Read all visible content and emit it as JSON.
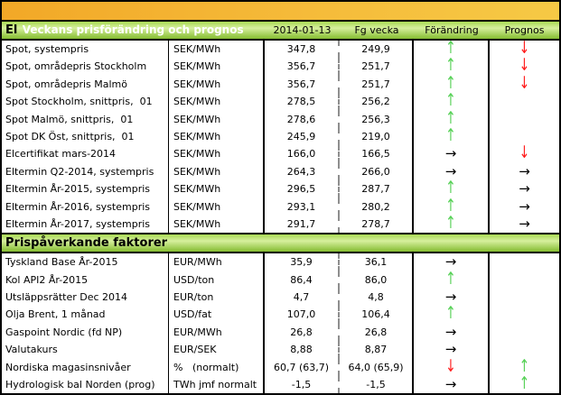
{
  "title": "Veckans prisförändring och prognos",
  "columns": [
    "2014-01-13",
    "Fg vecka",
    "Förändring",
    "Prognos"
  ],
  "column_names": [
    "column-header-date",
    "column-header-prev-week",
    "column-header-change",
    "column-header-forecast"
  ],
  "icons": {
    "up": "↑",
    "down": "↓",
    "flat": "→"
  },
  "colors": {
    "up_arrow": "#58d158",
    "down_arrow": "#ff1e1e",
    "flat_arrow": "#000000",
    "title_bar_orange": "#f2a827",
    "section_bar_green": "#a9da54"
  },
  "sections": [
    {
      "label": "El",
      "show_columns": true,
      "rows": [
        {
          "name": "Spot, systempris",
          "unit": "SEK/MWh",
          "current": "347,8",
          "previous": "249,9",
          "change": "up",
          "forecast": "down"
        },
        {
          "name": "Spot, områdepris Stockholm",
          "unit": "SEK/MWh",
          "current": "356,7",
          "previous": "251,7",
          "change": "up",
          "forecast": "down"
        },
        {
          "name": "Spot, områdepris Malmö",
          "unit": "SEK/MWh",
          "current": "356,7",
          "previous": "251,7",
          "change": "up",
          "forecast": "down"
        },
        {
          "name": "Spot Stockholm, snittpris,  01",
          "unit": "SEK/MWh",
          "current": "278,5",
          "previous": "256,2",
          "change": "up",
          "forecast": null
        },
        {
          "name": "Spot Malmö, snittpris,  01",
          "unit": "SEK/MWh",
          "current": "278,6",
          "previous": "256,3",
          "change": "up",
          "forecast": null
        },
        {
          "name": "Spot DK Öst, snittpris,  01",
          "unit": "SEK/MWh",
          "current": "245,9",
          "previous": "219,0",
          "change": "up",
          "forecast": null
        },
        {
          "name": "Elcertifikat mars-2014",
          "unit": "SEK/MWh",
          "current": "166,0",
          "previous": "166,5",
          "change": "flat",
          "forecast": "down"
        },
        {
          "name": "Eltermin Q2-2014, systempris",
          "unit": "SEK/MWh",
          "current": "264,3",
          "previous": "266,0",
          "change": "flat",
          "forecast": "flat"
        },
        {
          "name": "Eltermin År-2015, systempris",
          "unit": "SEK/MWh",
          "current": "296,5",
          "previous": "287,7",
          "change": "up",
          "forecast": "flat"
        },
        {
          "name": "Eltermin År-2016, systempris",
          "unit": "SEK/MWh",
          "current": "293,1",
          "previous": "280,2",
          "change": "up",
          "forecast": "flat"
        },
        {
          "name": "Eltermin År-2017, systempris",
          "unit": "SEK/MWh",
          "current": "291,7",
          "previous": "278,7",
          "change": "up",
          "forecast": "flat"
        }
      ]
    },
    {
      "label": "Prispåverkande faktorer",
      "show_columns": false,
      "rows": [
        {
          "name": "Tyskland Base År-2015",
          "unit": "EUR/MWh",
          "current": "35,9",
          "previous": "36,1",
          "change": "flat",
          "forecast": null
        },
        {
          "name": "Kol API2 År-2015",
          "unit": "USD/ton",
          "current": "86,4",
          "previous": "86,0",
          "change": "up",
          "forecast": null
        },
        {
          "name": "Utsläppsrätter Dec 2014",
          "unit": "EUR/ton",
          "current": "4,7",
          "previous": "4,8",
          "change": "flat",
          "forecast": null
        },
        {
          "name": "Olja Brent, 1 månad",
          "unit": "USD/fat",
          "current": "107,0",
          "previous": "106,4",
          "change": "up",
          "forecast": null
        },
        {
          "name": "Gaspoint Nordic (fd NP)",
          "unit": "EUR/MWh",
          "current": "26,8",
          "previous": "26,8",
          "change": "flat",
          "forecast": null
        },
        {
          "name": "Valutakurs",
          "unit": "EUR/SEK",
          "current": "8,88",
          "previous": "8,87",
          "change": "flat",
          "forecast": null
        },
        {
          "name": "Nordiska magasinsnivåer",
          "unit": "%   (normalt)",
          "current": "60,7 (63,7)",
          "previous": "64,0 (65,9)",
          "change": "down",
          "forecast": "up"
        },
        {
          "name": "Hydrologisk bal Norden (prog)",
          "unit": "TWh jmf normalt",
          "current": "-1,5",
          "previous": "-1,5",
          "change": "flat",
          "forecast": "up"
        }
      ]
    }
  ]
}
